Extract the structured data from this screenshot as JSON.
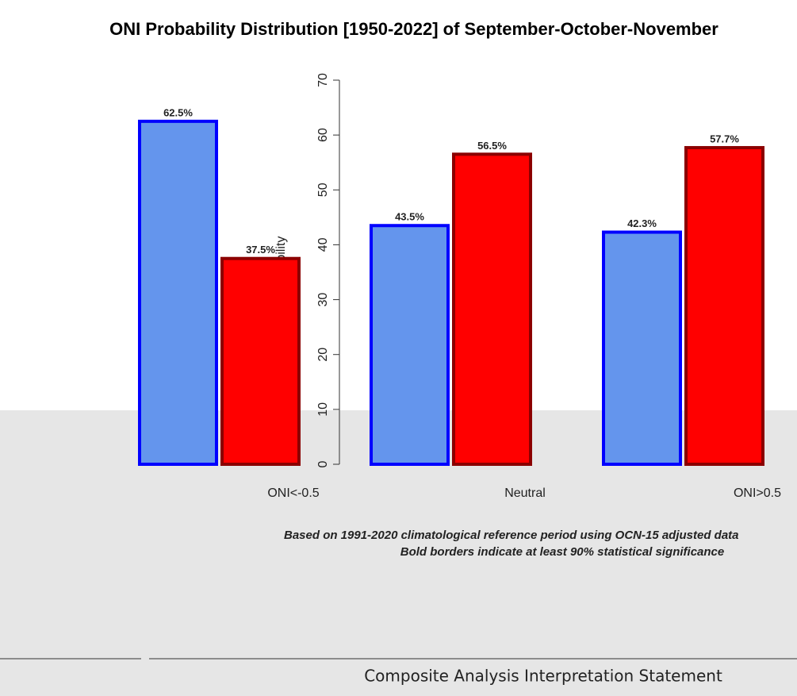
{
  "chart_data": {
    "type": "bar",
    "title": "ONI Probability Distribution [1950-2022] of September-October-November",
    "y_label": "Probability",
    "categories": [
      "ONI<-0.5",
      "Neutral",
      "ONI>0.5"
    ],
    "series": [
      {
        "color": "#6495ed",
        "border": "#0000ff",
        "values": [
          62.5,
          43.5,
          42.3
        ],
        "value_labels": [
          "62.5%",
          "43.5%",
          "42.3%"
        ]
      },
      {
        "color": "#ff0000",
        "border": "#8b0000",
        "values": [
          37.5,
          56.5,
          57.7
        ],
        "value_labels": [
          "37.5%",
          "56.5%",
          "57.7%"
        ]
      },
      {
        "color": "#00cc00",
        "border": "#008800",
        "values": [
          0,
          0,
          0
        ]
      }
    ],
    "ylim": [
      0,
      70
    ],
    "yticks": [
      0,
      10,
      20,
      30,
      40,
      50,
      60,
      70
    ],
    "footnotes": [
      "Based on 1991-2020 climatological reference period using OCN-15 adjusted data",
      "Bold borders indicate at least 90% statistical significance"
    ],
    "statement": "Composite Analysis Interpretation Statement"
  }
}
